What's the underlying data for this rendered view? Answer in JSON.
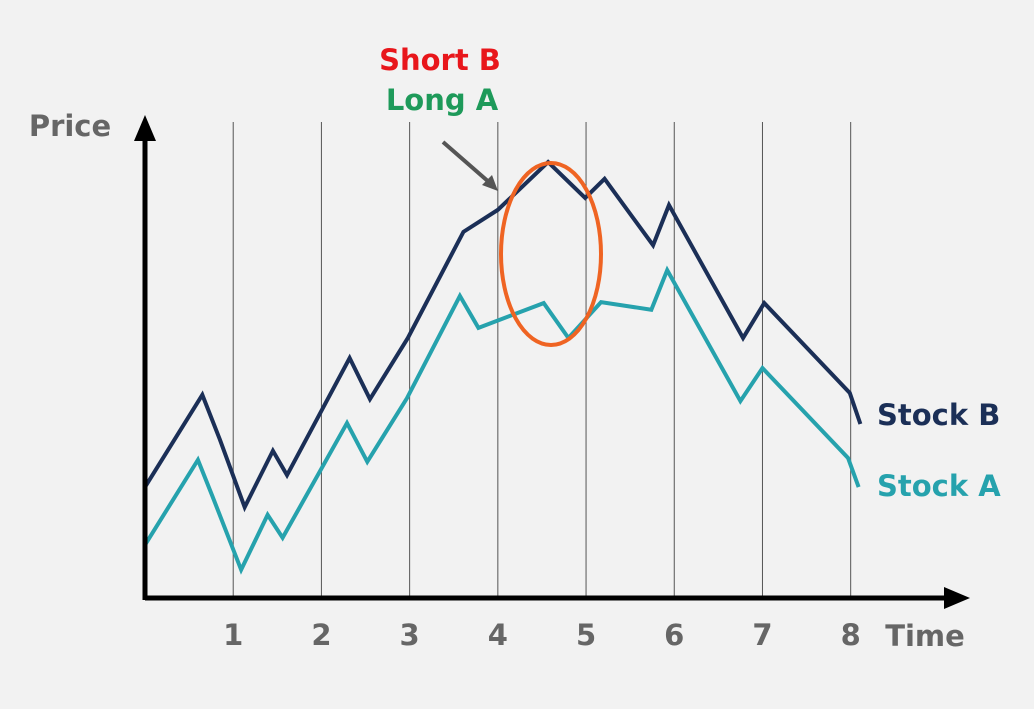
{
  "chart_data": {
    "type": "line",
    "annotations": [
      "Short B",
      "Long A"
    ],
    "y_label": "Price",
    "x_label": "Time",
    "xlim": [
      0,
      9.33
    ],
    "ylim": [
      0,
      100
    ],
    "xticks": [
      1,
      2,
      3,
      4,
      5,
      6,
      7,
      8
    ],
    "grid": true,
    "series": [
      {
        "name": "Stock B",
        "color": "#1b2f57",
        "x": [
          0,
          0.65,
          0.85,
          1.13,
          1.45,
          1.61,
          2.32,
          2.55,
          2.98,
          3.61,
          4.0,
          4.57,
          4.99,
          5.21,
          5.76,
          5.94,
          6.78,
          7.02,
          7.99,
          8.11
        ],
        "values": [
          23.2,
          42.5,
          33.1,
          19.0,
          30.8,
          25.7,
          50.2,
          41.6,
          54.4,
          76.6,
          81.2,
          91.2,
          83.7,
          87.7,
          73.8,
          82.2,
          54.4,
          61.7,
          42.9,
          36.4
        ]
      },
      {
        "name": "Stock A",
        "color": "#26a2ad",
        "x": [
          0,
          0.6,
          0.76,
          1.09,
          1.39,
          1.56,
          2.29,
          2.52,
          2.97,
          3.57,
          3.78,
          4.52,
          4.8,
          5.17,
          5.74,
          5.92,
          6.75,
          7.0,
          7.97,
          8.09
        ],
        "values": [
          11.1,
          28.9,
          21.5,
          5.9,
          17.4,
          12.6,
          36.6,
          28.5,
          41.8,
          63.2,
          56.5,
          61.7,
          54.4,
          61.9,
          60.3,
          68.6,
          41.2,
          48.1,
          29.3,
          23.2
        ]
      }
    ]
  }
}
